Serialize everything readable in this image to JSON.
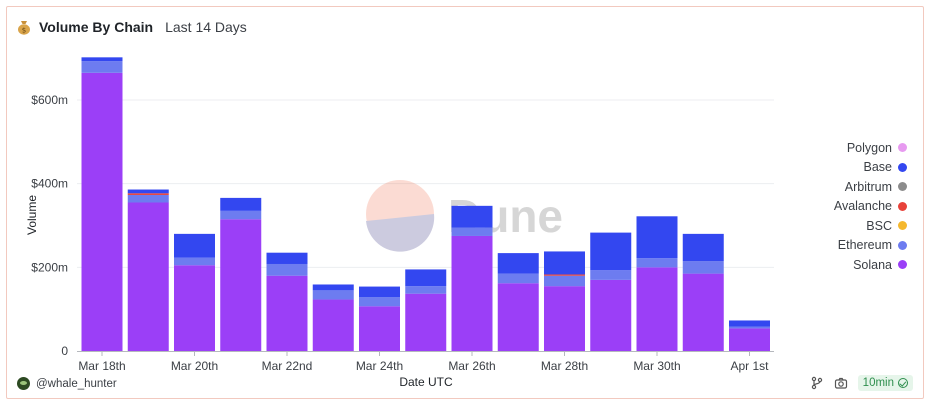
{
  "header": {
    "title": "Volume By Chain",
    "subtitle": "Last 14 Days"
  },
  "chart_data": {
    "type": "bar",
    "stacked": true,
    "watermark": "Dune",
    "categories": [
      "Mar 18th",
      "Mar 19th",
      "Mar 20th",
      "Mar 21st",
      "Mar 22nd",
      "Mar 23rd",
      "Mar 24th",
      "Mar 25th",
      "Mar 26th",
      "Mar 27th",
      "Mar 28th",
      "Mar 29th",
      "Mar 30th",
      "Mar 31st",
      "Apr 1st"
    ],
    "x_tick_labels": [
      "Mar 18th",
      "Mar 20th",
      "Mar 22nd",
      "Mar 24th",
      "Mar 26th",
      "Mar 28th",
      "Mar 30th",
      "Apr 1st"
    ],
    "xlabel": "Date UTC",
    "ylabel": "Volume",
    "ylim": [
      0,
      700000000
    ],
    "y_ticks": [
      0,
      200000000,
      400000000,
      600000000
    ],
    "y_tick_labels": [
      "0",
      "$200m",
      "$400m",
      "$600m"
    ],
    "grid": true,
    "legend_position": "right",
    "series": [
      {
        "name": "Solana",
        "color": "#9b3ff7",
        "values": [
          665000000,
          355000000,
          205000000,
          315000000,
          180000000,
          123000000,
          107000000,
          137000000,
          275000000,
          162000000,
          155000000,
          170000000,
          200000000,
          185000000,
          54000000
        ]
      },
      {
        "name": "Ethereum",
        "color": "#6d7cf0",
        "values": [
          28000000,
          18000000,
          18000000,
          20000000,
          28000000,
          22000000,
          22000000,
          18000000,
          20000000,
          23000000,
          25000000,
          23000000,
          22000000,
          30000000,
          4000000
        ]
      },
      {
        "name": "BSC",
        "color": "#f5b82e",
        "values": [
          0,
          0,
          0,
          0,
          0,
          0,
          0,
          0,
          0,
          0,
          0,
          0,
          0,
          0,
          0
        ]
      },
      {
        "name": "Avalanche",
        "color": "#e8423a",
        "values": [
          0,
          4000000,
          0,
          0,
          0,
          0,
          0,
          0,
          0,
          0,
          3000000,
          0,
          0,
          0,
          0
        ]
      },
      {
        "name": "Arbitrum",
        "color": "#8c8c8c",
        "values": [
          0,
          0,
          0,
          0,
          0,
          0,
          0,
          0,
          0,
          0,
          0,
          0,
          0,
          0,
          0
        ]
      },
      {
        "name": "Base",
        "color": "#3347f0",
        "values": [
          9000000,
          9000000,
          57000000,
          31000000,
          27000000,
          14000000,
          25000000,
          40000000,
          52000000,
          49000000,
          55000000,
          90000000,
          100000000,
          65000000,
          15000000
        ]
      },
      {
        "name": "Polygon",
        "color": "#e79af0",
        "values": [
          0,
          0,
          0,
          0,
          0,
          0,
          0,
          0,
          0,
          0,
          0,
          0,
          0,
          0,
          0
        ]
      }
    ]
  },
  "legend": {
    "items": [
      {
        "name": "Polygon",
        "color": "#e79af0"
      },
      {
        "name": "Base",
        "color": "#3347f0"
      },
      {
        "name": "Arbitrum",
        "color": "#8c8c8c"
      },
      {
        "name": "Avalanche",
        "color": "#e8423a"
      },
      {
        "name": "BSC",
        "color": "#f5b82e"
      },
      {
        "name": "Ethereum",
        "color": "#6d7cf0"
      },
      {
        "name": "Solana",
        "color": "#9b3ff7"
      }
    ]
  },
  "footer": {
    "author": "@whale_hunter",
    "refresh": "10min",
    "icons": [
      "moneybag-icon",
      "git-fork-icon",
      "camera-icon",
      "check-circle-icon"
    ]
  }
}
